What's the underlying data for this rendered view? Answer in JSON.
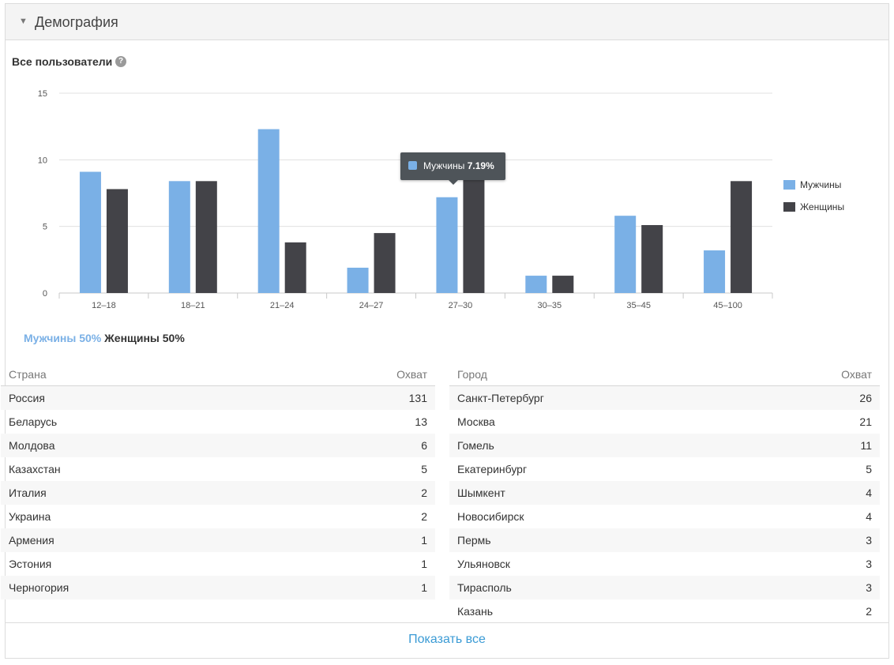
{
  "panel": {
    "title": "Демография",
    "collapse_icon": "triangle-down-icon"
  },
  "audience": {
    "label": "Все пользователи",
    "help_glyph": "?"
  },
  "colors": {
    "men": "#7ab0e6",
    "women": "#434348",
    "link": "#3b9bd5",
    "grid": "#e0e0e0"
  },
  "chart_data": {
    "type": "bar",
    "categories": [
      "12–18",
      "18–21",
      "21–24",
      "24–27",
      "27–30",
      "30–35",
      "35–45",
      "45–100"
    ],
    "series": [
      {
        "name": "Мужчины",
        "values": [
          9.1,
          8.4,
          12.3,
          1.9,
          7.19,
          1.3,
          5.8,
          3.2
        ]
      },
      {
        "name": "Женщины",
        "values": [
          7.8,
          8.4,
          3.8,
          4.5,
          10.4,
          1.3,
          5.1,
          8.4
        ]
      }
    ],
    "y_ticks": [
      "0",
      "5",
      "10",
      "15"
    ],
    "ylim": [
      0,
      15
    ],
    "grid": true,
    "legend": "right",
    "tooltip": {
      "series": "Мужчины",
      "value": "7.19%"
    }
  },
  "gender": {
    "men": "Мужчины 50%",
    "women": "Женщины 50%"
  },
  "countries": {
    "header": {
      "name": "Страна",
      "value": "Охват"
    },
    "rows": [
      {
        "name": "Россия",
        "value": "131"
      },
      {
        "name": "Беларусь",
        "value": "13"
      },
      {
        "name": "Молдова",
        "value": "6"
      },
      {
        "name": "Казахстан",
        "value": "5"
      },
      {
        "name": "Италия",
        "value": "2"
      },
      {
        "name": "Украина",
        "value": "2"
      },
      {
        "name": "Армения",
        "value": "1"
      },
      {
        "name": "Эстония",
        "value": "1"
      },
      {
        "name": "Черногория",
        "value": "1"
      }
    ]
  },
  "cities": {
    "header": {
      "name": "Город",
      "value": "Охват"
    },
    "rows": [
      {
        "name": "Санкт-Петербург",
        "value": "26"
      },
      {
        "name": "Москва",
        "value": "21"
      },
      {
        "name": "Гомель",
        "value": "11"
      },
      {
        "name": "Екатеринбург",
        "value": "5"
      },
      {
        "name": "Шымкент",
        "value": "4"
      },
      {
        "name": "Новосибирск",
        "value": "4"
      },
      {
        "name": "Пермь",
        "value": "3"
      },
      {
        "name": "Ульяновск",
        "value": "3"
      },
      {
        "name": "Тирасполь",
        "value": "3"
      },
      {
        "name": "Казань",
        "value": "2"
      }
    ]
  },
  "footer": {
    "show_all": "Показать все"
  }
}
